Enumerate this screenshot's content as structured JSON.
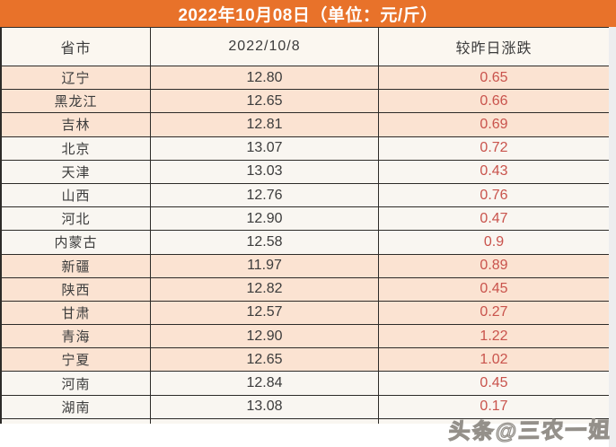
{
  "header": {
    "title": "2022年10月08日（单位：元/斤）"
  },
  "chart_data": {
    "type": "table",
    "title": "2022年10月08日（单位：元/斤）",
    "unit": "元/斤",
    "columns": [
      "省市",
      "2022/10/8",
      "较昨日涨跌"
    ],
    "rows": [
      {
        "province": "辽宁",
        "price": "12.80",
        "change": "0.65",
        "band": "peach"
      },
      {
        "province": "黑龙江",
        "price": "12.65",
        "change": "0.66",
        "band": "peach"
      },
      {
        "province": "吉林",
        "price": "12.81",
        "change": "0.69",
        "band": "peach"
      },
      {
        "province": "北京",
        "price": "13.07",
        "change": "0.72",
        "band": "light"
      },
      {
        "province": "天津",
        "price": "13.03",
        "change": "0.43",
        "band": "light"
      },
      {
        "province": "山西",
        "price": "12.76",
        "change": "0.76",
        "band": "light"
      },
      {
        "province": "河北",
        "price": "12.90",
        "change": "0.47",
        "band": "light"
      },
      {
        "province": "内蒙古",
        "price": "12.58",
        "change": "0.9",
        "band": "light"
      },
      {
        "province": "新疆",
        "price": "11.97",
        "change": "0.89",
        "band": "peach"
      },
      {
        "province": "陕西",
        "price": "12.82",
        "change": "0.45",
        "band": "peach"
      },
      {
        "province": "甘肃",
        "price": "12.57",
        "change": "0.27",
        "band": "peach"
      },
      {
        "province": "青海",
        "price": "12.90",
        "change": "1.22",
        "band": "peach"
      },
      {
        "province": "宁夏",
        "price": "12.65",
        "change": "1.02",
        "band": "peach"
      },
      {
        "province": "河南",
        "price": "12.84",
        "change": "0.45",
        "band": "light"
      },
      {
        "province": "湖南",
        "price": "13.08",
        "change": "0.17",
        "band": "light"
      }
    ]
  },
  "watermark": {
    "text": "头条@三农一姐"
  },
  "colors": {
    "title_bg": "#e8722a",
    "title_text": "#ffffff",
    "header_row_bg": "#fbf7f0",
    "peach_row": "#fbe3d2",
    "light_row": "#f9f6f1",
    "border": "#2d2b28",
    "change_red": "#c9534c",
    "text_dark": "#3c3c3c",
    "right_gutter": "#ededef"
  }
}
